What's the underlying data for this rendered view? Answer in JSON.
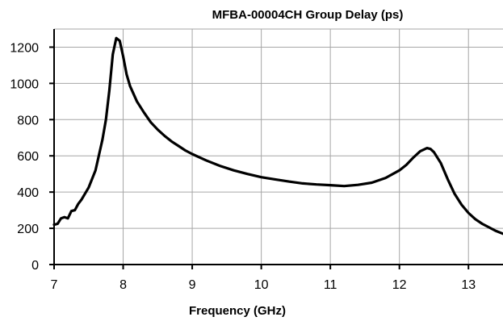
{
  "chart_data": {
    "type": "line",
    "title": "MFBA-00004CH Group Delay (ps)",
    "xlabel": "Frequency  (GHz)",
    "ylabel": "",
    "xlim": [
      7,
      13.5
    ],
    "ylim": [
      0,
      1300
    ],
    "x_ticks": [
      7,
      8,
      9,
      10,
      11,
      12,
      13
    ],
    "y_ticks": [
      0,
      200,
      400,
      600,
      800,
      1000,
      1200
    ],
    "grid": true,
    "legend": "none",
    "series": [
      {
        "color": "#000000",
        "points": [
          [
            7.0,
            220
          ],
          [
            7.05,
            225
          ],
          [
            7.1,
            255
          ],
          [
            7.15,
            262
          ],
          [
            7.2,
            255
          ],
          [
            7.25,
            295
          ],
          [
            7.3,
            300
          ],
          [
            7.35,
            335
          ],
          [
            7.4,
            360
          ],
          [
            7.5,
            425
          ],
          [
            7.6,
            520
          ],
          [
            7.7,
            690
          ],
          [
            7.75,
            800
          ],
          [
            7.8,
            960
          ],
          [
            7.85,
            1160
          ],
          [
            7.9,
            1250
          ],
          [
            7.95,
            1235
          ],
          [
            8.0,
            1150
          ],
          [
            8.05,
            1050
          ],
          [
            8.1,
            985
          ],
          [
            8.2,
            900
          ],
          [
            8.3,
            840
          ],
          [
            8.4,
            785
          ],
          [
            8.5,
            745
          ],
          [
            8.6,
            710
          ],
          [
            8.7,
            680
          ],
          [
            8.8,
            655
          ],
          [
            8.9,
            630
          ],
          [
            9.0,
            610
          ],
          [
            9.2,
            575
          ],
          [
            9.4,
            545
          ],
          [
            9.6,
            520
          ],
          [
            9.8,
            500
          ],
          [
            10.0,
            482
          ],
          [
            10.2,
            470
          ],
          [
            10.4,
            458
          ],
          [
            10.6,
            448
          ],
          [
            10.8,
            442
          ],
          [
            11.0,
            438
          ],
          [
            11.2,
            433
          ],
          [
            11.4,
            440
          ],
          [
            11.6,
            452
          ],
          [
            11.8,
            478
          ],
          [
            12.0,
            520
          ],
          [
            12.1,
            550
          ],
          [
            12.2,
            590
          ],
          [
            12.3,
            625
          ],
          [
            12.4,
            643
          ],
          [
            12.45,
            638
          ],
          [
            12.5,
            620
          ],
          [
            12.6,
            560
          ],
          [
            12.7,
            470
          ],
          [
            12.8,
            390
          ],
          [
            12.9,
            330
          ],
          [
            13.0,
            285
          ],
          [
            13.1,
            250
          ],
          [
            13.2,
            225
          ],
          [
            13.3,
            205
          ],
          [
            13.4,
            185
          ],
          [
            13.5,
            170
          ]
        ]
      }
    ]
  }
}
